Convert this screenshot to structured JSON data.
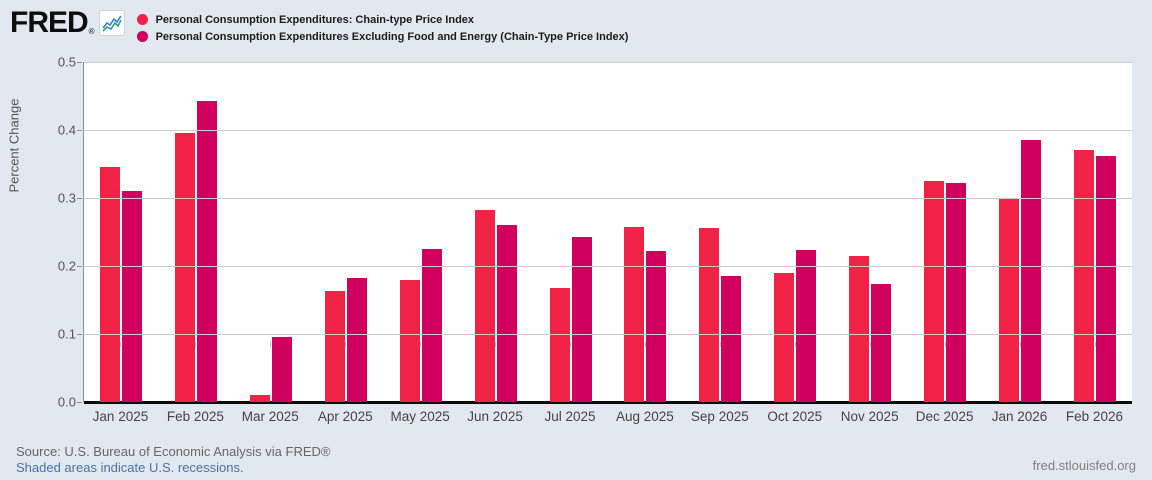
{
  "logo": {
    "text": "FRED",
    "registered": "®",
    "icon": "line-chart-icon"
  },
  "footer": {
    "source": "Source: U.S. Bureau of Economic Analysis via FRED®",
    "recession_note": "Shaded areas indicate U.S. recessions.",
    "site": "fred.stlouisfed.org"
  },
  "colors": {
    "page_background": "#e1e8f0",
    "plot_background": "#ffffff",
    "gridline": "#cbcbcb",
    "axis": "#0a0a0a",
    "series1": "#f02346",
    "series2": "#d0005f",
    "link_blue": "#4a72a5"
  },
  "chart_data": {
    "type": "bar",
    "title": "",
    "xlabel": "",
    "ylabel": "Percent Change",
    "ylim": [
      0,
      0.5
    ],
    "yticks": [
      "0.0",
      "0.1",
      "0.2",
      "0.3",
      "0.4",
      "0.5"
    ],
    "grid": true,
    "legend_position": "top",
    "categories": [
      "Jan 2025",
      "Feb 2025",
      "Mar 2025",
      "Apr 2025",
      "May 2025",
      "Jun 2025",
      "Jul 2025",
      "Aug 2025",
      "Sep 2025",
      "Oct 2025",
      "Nov 2025",
      "Dec 2025",
      "Jan 2026",
      "Feb 2026"
    ],
    "series": [
      {
        "name": "Personal Consumption Expenditures: Chain-type Price Index",
        "color": "#f02346",
        "values": [
          0.345,
          0.395,
          0.01,
          0.163,
          0.18,
          0.283,
          0.168,
          0.257,
          0.256,
          0.19,
          0.215,
          0.325,
          0.298,
          0.37
        ]
      },
      {
        "name": "Personal Consumption Expenditures Excluding Food and Energy (Chain-Type Price Index)",
        "color": "#d0005f",
        "values": [
          0.31,
          0.442,
          0.095,
          0.183,
          0.225,
          0.26,
          0.242,
          0.222,
          0.186,
          0.224,
          0.173,
          0.322,
          0.386,
          0.362
        ]
      }
    ]
  }
}
